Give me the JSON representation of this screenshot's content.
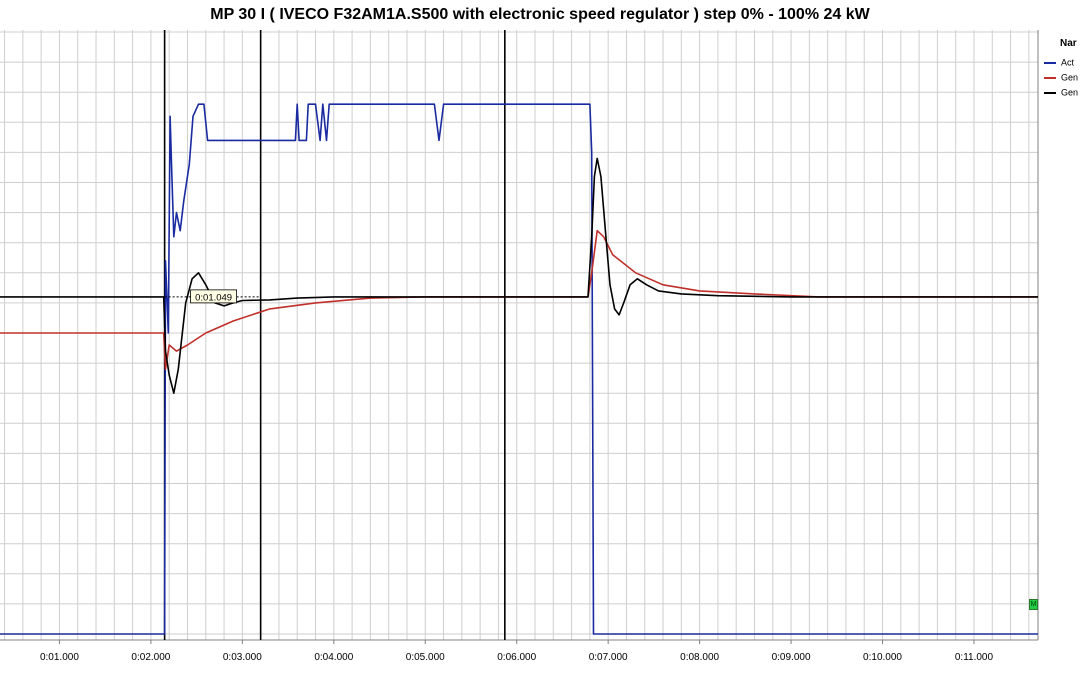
{
  "title": "MP 30 I ( IVECO F32AM1A.S500 with electronic speed regulator ) step 0% - 100% 24 kW",
  "legend": {
    "header": "Nar",
    "items": [
      {
        "label": "Act",
        "color": "#1a2aa0"
      },
      {
        "label": "Gen",
        "color": "#c0302a"
      },
      {
        "label": "Gen",
        "color": "#000000"
      }
    ]
  },
  "cursor_label": "0:01.049",
  "marker_text": "M",
  "chart_data": {
    "type": "line",
    "title": "MP 30 I ( IVECO F32AM1A.S500 with electronic speed regulator ) step 0% - 100% 24 kW",
    "xlabel": "",
    "ylabel": "",
    "x_unit": "seconds",
    "x_range": [
      0.35,
      11.7
    ],
    "y_range": [
      0,
      100
    ],
    "grid": true,
    "legend_position": "top-right",
    "x_ticks": [
      {
        "t": 1,
        "label": "0:01.000"
      },
      {
        "t": 2,
        "label": "0:02.000"
      },
      {
        "t": 3,
        "label": "0:03.000"
      },
      {
        "t": 4,
        "label": "0:04.000"
      },
      {
        "t": 5,
        "label": "0:05.000"
      },
      {
        "t": 6,
        "label": "0:06.000"
      },
      {
        "t": 7,
        "label": "0:07.000"
      },
      {
        "t": 8,
        "label": "0:08.000"
      },
      {
        "t": 9,
        "label": "0:09.000"
      },
      {
        "t": 10,
        "label": "0:10.000"
      },
      {
        "t": 11,
        "label": "0:11.000"
      }
    ],
    "cursors": [
      2.15,
      3.2,
      5.87
    ],
    "cursor_delta": {
      "from": 2.15,
      "to": 3.2,
      "label": "0:01.049",
      "y": 56
    },
    "series": [
      {
        "name": "Act",
        "color": "#1a2aa0",
        "points": [
          [
            0.35,
            0
          ],
          [
            2.15,
            0
          ],
          [
            2.16,
            62
          ],
          [
            2.19,
            50
          ],
          [
            2.21,
            86
          ],
          [
            2.23,
            76
          ],
          [
            2.25,
            66
          ],
          [
            2.28,
            70
          ],
          [
            2.32,
            67
          ],
          [
            2.36,
            72
          ],
          [
            2.42,
            78
          ],
          [
            2.46,
            86
          ],
          [
            2.52,
            88
          ],
          [
            2.58,
            88
          ],
          [
            2.62,
            82
          ],
          [
            2.7,
            82
          ],
          [
            3.0,
            82
          ],
          [
            3.3,
            82
          ],
          [
            3.58,
            82
          ],
          [
            3.6,
            88
          ],
          [
            3.62,
            82
          ],
          [
            3.7,
            82
          ],
          [
            3.72,
            88
          ],
          [
            3.8,
            88
          ],
          [
            3.85,
            82
          ],
          [
            3.88,
            88
          ],
          [
            3.92,
            82
          ],
          [
            3.95,
            88
          ],
          [
            4.5,
            88
          ],
          [
            5.1,
            88
          ],
          [
            5.15,
            82
          ],
          [
            5.2,
            88
          ],
          [
            6.8,
            88
          ],
          [
            6.82,
            80
          ],
          [
            6.84,
            0
          ],
          [
            11.7,
            0
          ]
        ]
      },
      {
        "name": "Gen",
        "color": "#c0302a",
        "points": [
          [
            0.35,
            50
          ],
          [
            2.14,
            50
          ],
          [
            2.16,
            44
          ],
          [
            2.2,
            48
          ],
          [
            2.28,
            47
          ],
          [
            2.4,
            48
          ],
          [
            2.6,
            50
          ],
          [
            2.9,
            52
          ],
          [
            3.3,
            54
          ],
          [
            3.8,
            55
          ],
          [
            4.4,
            55.8
          ],
          [
            5.0,
            56
          ],
          [
            5.5,
            56
          ],
          [
            6.0,
            56
          ],
          [
            6.78,
            56
          ],
          [
            6.82,
            60
          ],
          [
            6.88,
            67
          ],
          [
            6.95,
            66
          ],
          [
            7.05,
            63
          ],
          [
            7.3,
            60
          ],
          [
            7.6,
            58
          ],
          [
            8.0,
            57
          ],
          [
            8.6,
            56.5
          ],
          [
            9.3,
            56
          ],
          [
            10.5,
            56
          ],
          [
            11.7,
            56
          ]
        ]
      },
      {
        "name": "Gen",
        "color": "#000000",
        "points": [
          [
            0.35,
            56
          ],
          [
            2.14,
            56
          ],
          [
            2.16,
            47
          ],
          [
            2.2,
            43
          ],
          [
            2.25,
            40
          ],
          [
            2.3,
            44
          ],
          [
            2.38,
            55
          ],
          [
            2.45,
            59
          ],
          [
            2.52,
            60
          ],
          [
            2.6,
            58
          ],
          [
            2.7,
            55
          ],
          [
            2.8,
            54.5
          ],
          [
            2.9,
            55
          ],
          [
            3.0,
            55.4
          ],
          [
            3.3,
            55.5
          ],
          [
            3.6,
            55.8
          ],
          [
            4.0,
            56
          ],
          [
            4.5,
            56
          ],
          [
            5.0,
            56
          ],
          [
            5.5,
            56
          ],
          [
            6.0,
            56
          ],
          [
            6.78,
            56
          ],
          [
            6.82,
            66
          ],
          [
            6.85,
            76
          ],
          [
            6.88,
            79
          ],
          [
            6.92,
            76
          ],
          [
            6.97,
            67
          ],
          [
            7.02,
            58
          ],
          [
            7.07,
            54
          ],
          [
            7.12,
            53
          ],
          [
            7.17,
            55
          ],
          [
            7.24,
            58
          ],
          [
            7.32,
            59
          ],
          [
            7.42,
            58
          ],
          [
            7.55,
            57
          ],
          [
            7.8,
            56.5
          ],
          [
            8.2,
            56.2
          ],
          [
            9.0,
            56
          ],
          [
            11.7,
            56
          ]
        ]
      }
    ]
  }
}
